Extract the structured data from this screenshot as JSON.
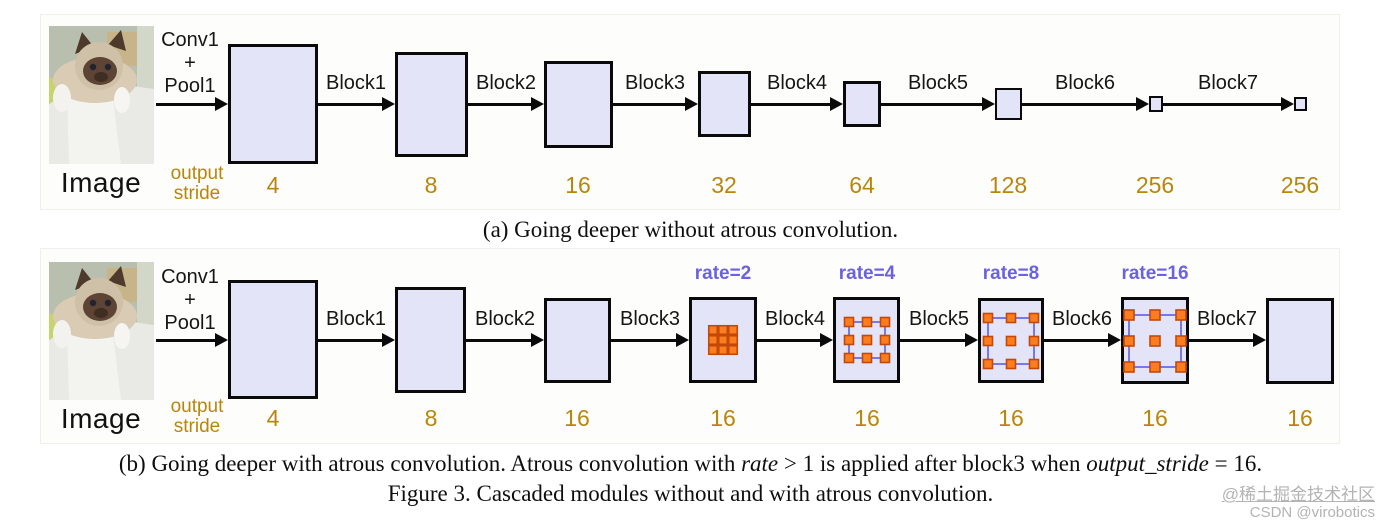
{
  "captions": {
    "panel_a": "(a) Going deeper without atrous convolution.",
    "panel_b_pre": "(b) Going deeper with atrous convolution. Atrous convolution with ",
    "panel_b_math1": "rate",
    "panel_b_mid": " > 1 is applied after block3 when ",
    "panel_b_math2": "output_stride",
    "panel_b_post": " = 16.",
    "figure": "Figure 3. Cascaded modules without and with atrous convolution."
  },
  "panel_a": {
    "image_label": "Image",
    "stem_lines": [
      "Conv1",
      "+",
      "Pool1"
    ],
    "block_labels": [
      "Block1",
      "Block2",
      "Block3",
      "Block4",
      "Block5",
      "Block6",
      "Block7"
    ],
    "output_stride_label_line1": "output",
    "output_stride_label_line2": "stride",
    "output_strides": [
      "4",
      "8",
      "16",
      "32",
      "64",
      "128",
      "256",
      "256"
    ]
  },
  "panel_b": {
    "image_label": "Image",
    "stem_lines": [
      "Conv1",
      "+",
      "Pool1"
    ],
    "block_labels": [
      "Block1",
      "Block2",
      "Block3",
      "Block4",
      "Block5",
      "Block6",
      "Block7"
    ],
    "rate_labels": [
      "rate=2",
      "rate=4",
      "rate=8",
      "rate=16"
    ],
    "output_stride_label_line1": "output",
    "output_stride_label_line2": "stride",
    "output_strides": [
      "4",
      "8",
      "16",
      "16",
      "16",
      "16",
      "16",
      "16"
    ]
  },
  "watermark": {
    "line1": "@稀土掘金技术社区",
    "line2": "CSDN @virobotics"
  },
  "colors": {
    "block_fill": "#e4e4f8",
    "block_border": "#0a0a0a",
    "output_stride_text": "#b8860b",
    "rate_text": "#6a62e0",
    "dot_fill": "#fb7d1d",
    "dot_border": "#c2490a",
    "grid_line": "#7878e8"
  }
}
